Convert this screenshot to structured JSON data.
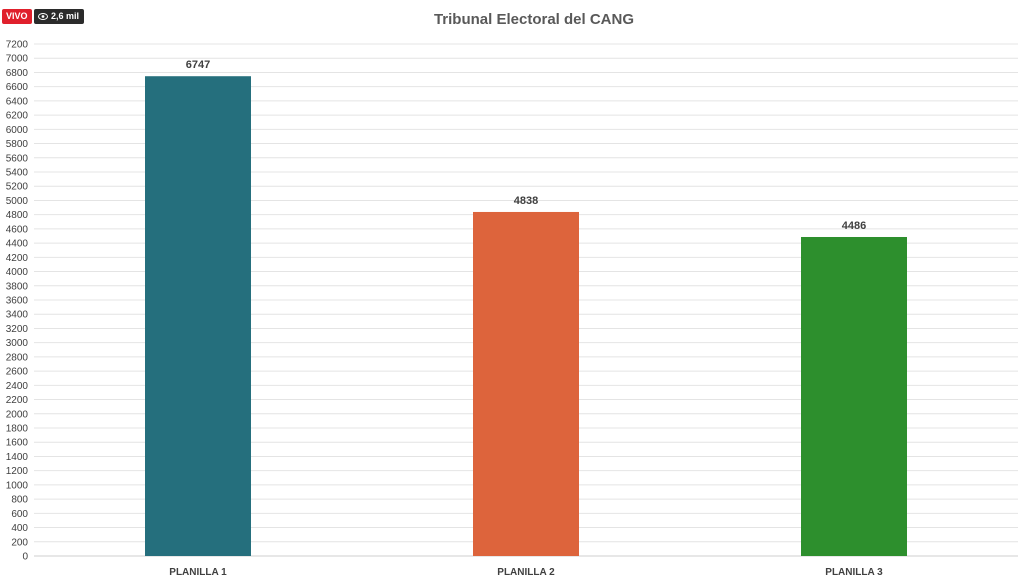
{
  "overlay": {
    "live_label": "VIVO",
    "viewers_label": "2,6 mil"
  },
  "chart_data": {
    "type": "bar",
    "title": "Tribunal Electoral del CANG",
    "xlabel": "",
    "ylabel": "",
    "categories": [
      "PLANILLA 1",
      "PLANILLA 2",
      "PLANILLA 3"
    ],
    "values": [
      6747,
      4838,
      4486
    ],
    "colors": [
      "#256f7d",
      "#dd643c",
      "#2d8f2d"
    ],
    "ylim": [
      0,
      7200
    ],
    "ytick_step": 200,
    "grid": true,
    "legend": "none"
  }
}
